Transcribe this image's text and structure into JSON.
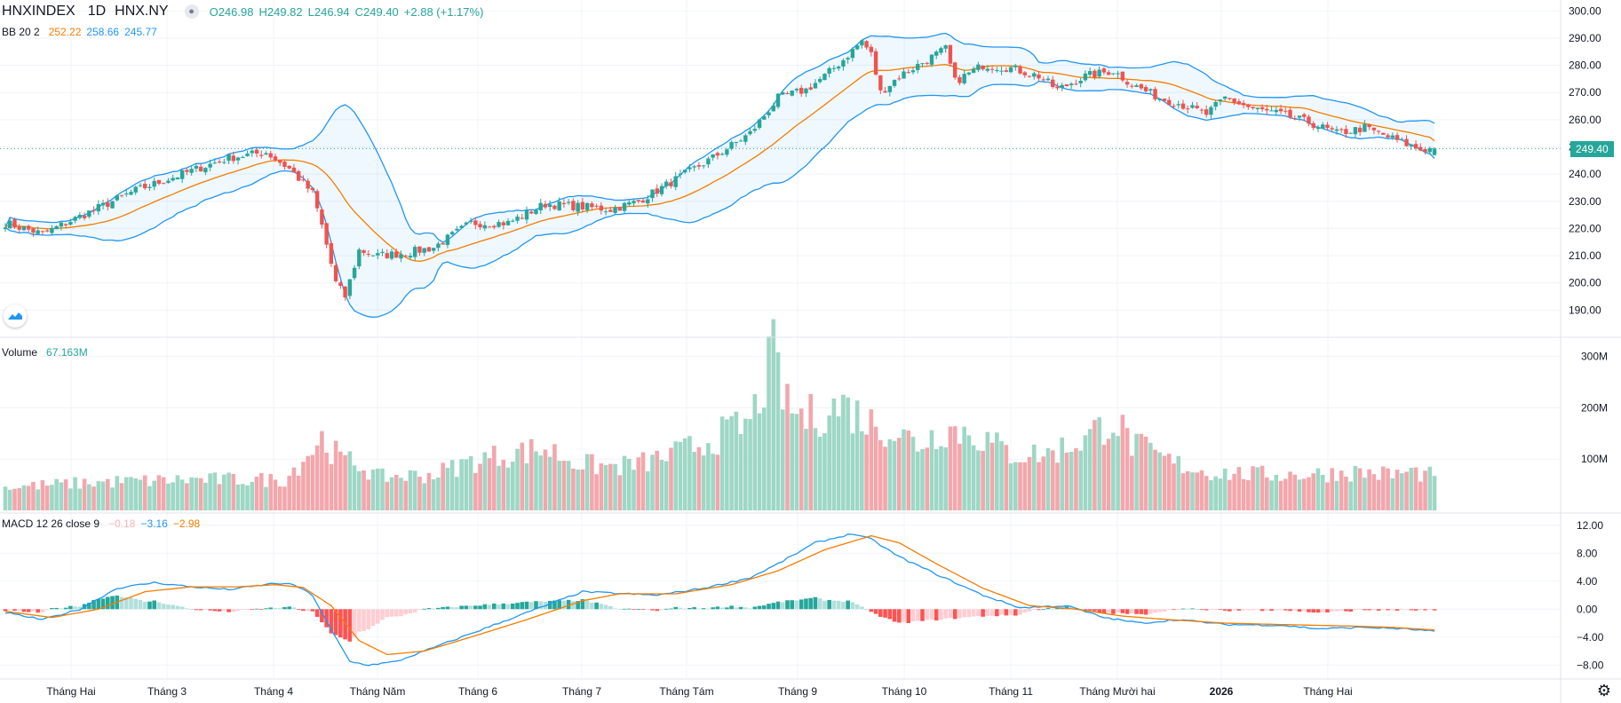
{
  "header": {
    "symbol": "HNXINDEX",
    "interval": "1D",
    "exchange": "HNX.NY",
    "open": "O246.98",
    "high": "H249.82",
    "low": "L246.94",
    "close": "C249.40",
    "change": "+2.88 (+1.17%)",
    "bb_label": "BB 20 2",
    "bb_basis": "252.22",
    "bb_upper": "258.66",
    "bb_lower": "245.77",
    "vol_label": "Volume",
    "vol_value": "67.163M",
    "macd_label": "MACD 12 26 close 9",
    "macd_hist": "−0.18",
    "macd_line": "−3.16",
    "macd_signal": "−2.98"
  },
  "colors": {
    "up": "#26a69a",
    "down": "#ef5350",
    "up_vol": "#9ed7c5",
    "down_vol": "#f2a7ac",
    "bb_band": "#2196f3",
    "bb_basis": "#f57c00",
    "macd_line": "#2196f3",
    "signal_line": "#f57c00",
    "grid": "#f0f3fa"
  },
  "chart_data": [
    {
      "type": "candlestick",
      "id": "price",
      "title": "HNXINDEX 1D HNX.NY",
      "ylim": [
        180,
        304
      ],
      "y_ticks": [
        "300.00",
        "290.00",
        "280.00",
        "270.00",
        "260.00",
        "250.00",
        "240.00",
        "230.00",
        "220.00",
        "210.00",
        "200.00",
        "190.00"
      ],
      "last_price": "249.40",
      "x_labels": [
        "Tháng Hai",
        "Tháng 3",
        "Tháng 4",
        "Tháng Năm",
        "Tháng 6",
        "Tháng 7",
        "Tháng Tám",
        "Tháng 9",
        "Tháng 10",
        "Tháng 11",
        "Tháng Mười hai",
        "2026",
        "Tháng Hai"
      ],
      "anchors": [
        [
          0,
          222
        ],
        [
          8,
          218
        ],
        [
          18,
          226
        ],
        [
          28,
          234
        ],
        [
          38,
          240
        ],
        [
          48,
          246
        ],
        [
          56,
          248
        ],
        [
          61,
          242
        ],
        [
          66,
          233
        ],
        [
          68,
          221
        ],
        [
          71,
          200
        ],
        [
          73,
          195
        ],
        [
          76,
          212
        ],
        [
          80,
          210
        ],
        [
          86,
          211
        ],
        [
          92,
          213
        ],
        [
          100,
          222
        ],
        [
          108,
          222
        ],
        [
          116,
          229
        ],
        [
          124,
          228
        ],
        [
          130,
          227
        ],
        [
          136,
          230
        ],
        [
          144,
          238
        ],
        [
          152,
          246
        ],
        [
          160,
          255
        ],
        [
          166,
          268
        ],
        [
          172,
          271
        ],
        [
          176,
          276
        ],
        [
          180,
          282
        ],
        [
          184,
          289
        ],
        [
          186,
          284
        ],
        [
          188,
          270
        ],
        [
          192,
          276
        ],
        [
          198,
          282
        ],
        [
          202,
          286
        ],
        [
          204,
          274
        ],
        [
          210,
          280
        ],
        [
          216,
          279
        ],
        [
          222,
          276
        ],
        [
          226,
          271
        ],
        [
          232,
          276
        ],
        [
          238,
          278
        ],
        [
          242,
          273
        ],
        [
          248,
          268
        ],
        [
          252,
          266
        ],
        [
          258,
          262
        ],
        [
          262,
          268
        ],
        [
          268,
          264
        ],
        [
          274,
          262
        ],
        [
          280,
          259
        ],
        [
          286,
          255
        ],
        [
          292,
          257
        ],
        [
          298,
          253
        ],
        [
          304,
          249
        ],
        [
          307,
          249.4
        ]
      ],
      "count": 308
    },
    {
      "type": "bar",
      "id": "volume",
      "title": "Volume 67.163M",
      "ylim": [
        0,
        320
      ],
      "unit": "M",
      "y_ticks": [
        "300M",
        "200M",
        "100M"
      ],
      "anchors": [
        [
          0,
          45
        ],
        [
          20,
          55
        ],
        [
          40,
          60
        ],
        [
          60,
          60
        ],
        [
          68,
          140
        ],
        [
          72,
          100
        ],
        [
          76,
          90
        ],
        [
          80,
          65
        ],
        [
          92,
          70
        ],
        [
          100,
          95
        ],
        [
          108,
          110
        ],
        [
          116,
          120
        ],
        [
          124,
          90
        ],
        [
          130,
          85
        ],
        [
          136,
          90
        ],
        [
          144,
          110
        ],
        [
          152,
          140
        ],
        [
          160,
          170
        ],
        [
          165,
          300
        ],
        [
          168,
          200
        ],
        [
          172,
          180
        ],
        [
          180,
          205
        ],
        [
          186,
          170
        ],
        [
          190,
          160
        ],
        [
          196,
          130
        ],
        [
          202,
          160
        ],
        [
          208,
          150
        ],
        [
          216,
          110
        ],
        [
          224,
          110
        ],
        [
          228,
          125
        ],
        [
          232,
          140
        ],
        [
          238,
          180
        ],
        [
          242,
          130
        ],
        [
          250,
          95
        ],
        [
          258,
          75
        ],
        [
          268,
          70
        ],
        [
          280,
          70
        ],
        [
          290,
          75
        ],
        [
          298,
          70
        ],
        [
          302,
          75
        ],
        [
          307,
          67.163
        ]
      ]
    },
    {
      "type": "line+histogram",
      "id": "macd",
      "title": "MACD 12 26 close 9",
      "ylim": [
        -10,
        13.5
      ],
      "y_ticks": [
        "12.00",
        "8.00",
        "4.00",
        "0.00",
        "−4.00",
        "−8.00"
      ],
      "series": [
        {
          "name": "MACD",
          "anchors": [
            [
              0,
              -0.5
            ],
            [
              8,
              -1.5
            ],
            [
              16,
              0
            ],
            [
              24,
              3
            ],
            [
              32,
              3.8
            ],
            [
              40,
              3.2
            ],
            [
              48,
              2.8
            ],
            [
              58,
              3.7
            ],
            [
              62,
              3.5
            ],
            [
              66,
              2.0
            ],
            [
              70,
              -3.0
            ],
            [
              74,
              -7.5
            ],
            [
              78,
              -8.0
            ],
            [
              84,
              -7.5
            ],
            [
              92,
              -5.5
            ],
            [
              100,
              -3.5
            ],
            [
              110,
              -1
            ],
            [
              120,
              1.5
            ],
            [
              124,
              2.5
            ],
            [
              130,
              2.3
            ],
            [
              140,
              2.0
            ],
            [
              150,
              3.0
            ],
            [
              160,
              4.5
            ],
            [
              166,
              6.5
            ],
            [
              174,
              9.5
            ],
            [
              182,
              10.8
            ],
            [
              186,
              10.0
            ],
            [
              192,
              7.5
            ],
            [
              200,
              5.0
            ],
            [
              210,
              2.0
            ],
            [
              218,
              0.2
            ],
            [
              228,
              0.5
            ],
            [
              236,
              -1.2
            ],
            [
              244,
              -2.0
            ],
            [
              252,
              -1.5
            ],
            [
              262,
              -2.2
            ],
            [
              274,
              -2.3
            ],
            [
              282,
              -2.8
            ],
            [
              292,
              -2.6
            ],
            [
              300,
              -2.8
            ],
            [
              307,
              -3.16
            ]
          ]
        },
        {
          "name": "Signal",
          "anchors": [
            [
              0,
              -0.3
            ],
            [
              10,
              -1.2
            ],
            [
              20,
              0
            ],
            [
              30,
              2.5
            ],
            [
              40,
              3.2
            ],
            [
              50,
              3.2
            ],
            [
              58,
              3.5
            ],
            [
              64,
              3.1
            ],
            [
              70,
              0.5
            ],
            [
              76,
              -4.5
            ],
            [
              82,
              -6.5
            ],
            [
              90,
              -6.0
            ],
            [
              100,
              -4.0
            ],
            [
              112,
              -1.5
            ],
            [
              124,
              1.2
            ],
            [
              132,
              2.2
            ],
            [
              144,
              2.2
            ],
            [
              156,
              3.5
            ],
            [
              166,
              5.5
            ],
            [
              176,
              8.5
            ],
            [
              186,
              10.5
            ],
            [
              192,
              9.5
            ],
            [
              200,
              6.5
            ],
            [
              210,
              3.0
            ],
            [
              220,
              0.5
            ],
            [
              230,
              0.0
            ],
            [
              240,
              -1.0
            ],
            [
              250,
              -1.5
            ],
            [
              262,
              -2.0
            ],
            [
              274,
              -2.2
            ],
            [
              288,
              -2.4
            ],
            [
              298,
              -2.6
            ],
            [
              307,
              -2.98
            ]
          ]
        }
      ]
    }
  ]
}
